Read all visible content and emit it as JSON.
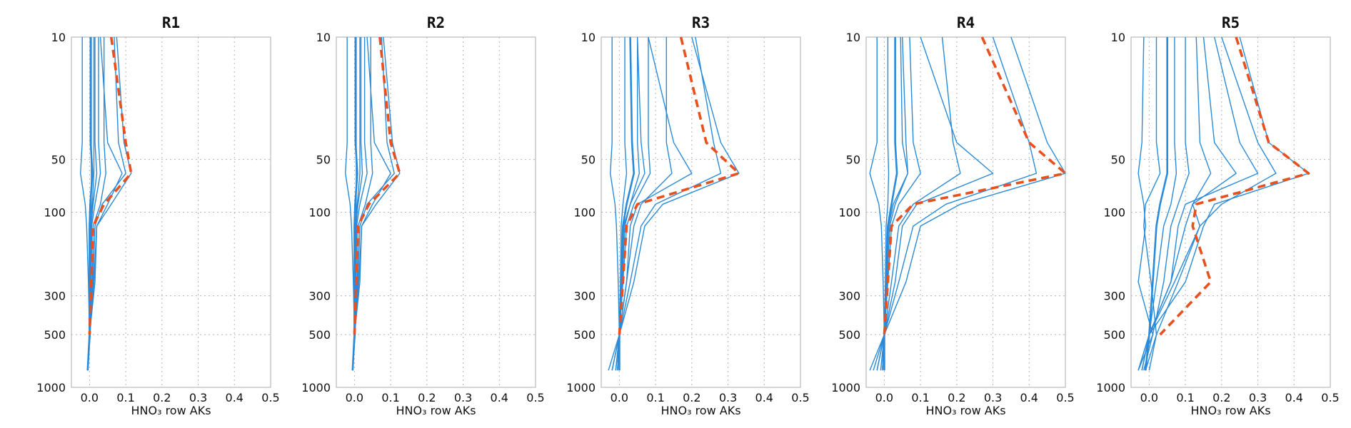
{
  "figure": {
    "xlabel": "HNO₃ row AKs"
  },
  "colors": {
    "ak_lines": "#2a8ad8",
    "highlight": "#e8501e",
    "grid": "#b5b5b5",
    "frame": "#b9b9b9"
  },
  "chart_data": [
    {
      "type": "line",
      "title": "R1",
      "xlabel": "HNO₃ row AKs",
      "ylabel": "",
      "xlim": [
        -0.05,
        0.5
      ],
      "xticks": [
        "0.0",
        "0.1",
        "0.2",
        "0.3",
        "0.4",
        "0.5"
      ],
      "y_axis": {
        "scale": "log",
        "inverted": true,
        "range": [
          1000,
          10
        ],
        "tick_labels": [
          "10",
          "50",
          "100",
          "300",
          "500",
          "1000"
        ]
      },
      "grid": true,
      "highlight_series": 10,
      "y_levels": [
        10,
        40,
        60,
        90,
        120,
        250,
        500,
        800
      ],
      "series": [
        {
          "values": [
            0.005,
            0.005,
            0.005,
            0.005,
            0.005,
            0.005,
            0.002,
            -0.005
          ]
        },
        {
          "values": [
            -0.02,
            -0.02,
            -0.025,
            -0.012,
            -0.008,
            -0.003,
            0.0,
            -0.005
          ]
        },
        {
          "values": [
            0.003,
            0.003,
            0.008,
            0.002,
            0.0,
            0.0,
            0.0,
            -0.005
          ]
        },
        {
          "values": [
            0.012,
            0.012,
            0.012,
            0.008,
            0.003,
            0.002,
            0.0,
            -0.005
          ]
        },
        {
          "values": [
            0.015,
            0.015,
            0.02,
            0.01,
            0.004,
            0.003,
            0.0,
            -0.005
          ]
        },
        {
          "values": [
            0.025,
            0.025,
            0.03,
            0.015,
            0.006,
            0.005,
            0.0,
            -0.005
          ]
        },
        {
          "values": [
            0.04,
            0.04,
            0.045,
            0.03,
            0.01,
            0.008,
            0.0,
            -0.005
          ]
        },
        {
          "values": [
            0.068,
            0.08,
            0.1,
            0.035,
            0.015,
            0.01,
            0.0,
            -0.005
          ]
        },
        {
          "values": [
            0.075,
            0.095,
            0.115,
            0.06,
            0.02,
            0.012,
            0.0,
            -0.005
          ]
        },
        {
          "values": [
            0.03,
            0.05,
            0.09,
            0.05,
            0.02,
            0.015,
            0.0,
            -0.005
          ]
        },
        {
          "values": [
            0.06,
            0.1,
            0.115,
            0.04,
            0.01,
            0.005,
            0.0,
            null
          ]
        }
      ]
    },
    {
      "type": "line",
      "title": "R2",
      "xlabel": "HNO₃ row AKs",
      "ylabel": "",
      "xlim": [
        -0.05,
        0.5
      ],
      "xticks": [
        "0.0",
        "0.1",
        "0.2",
        "0.3",
        "0.4",
        "0.5"
      ],
      "y_axis": {
        "scale": "log",
        "inverted": true,
        "range": [
          1000,
          10
        ],
        "tick_labels": [
          "10",
          "50",
          "100",
          "300",
          "500",
          "1000"
        ]
      },
      "grid": true,
      "highlight_series": 10,
      "y_levels": [
        10,
        40,
        60,
        90,
        120,
        250,
        500,
        800
      ],
      "series": [
        {
          "values": [
            0.005,
            0.005,
            0.005,
            0.005,
            0.005,
            0.005,
            0.002,
            -0.005
          ]
        },
        {
          "values": [
            -0.02,
            -0.02,
            -0.025,
            -0.012,
            -0.008,
            -0.003,
            0.0,
            -0.005
          ]
        },
        {
          "values": [
            0.003,
            0.003,
            0.008,
            0.002,
            0.0,
            0.0,
            0.0,
            -0.005
          ]
        },
        {
          "values": [
            0.015,
            0.015,
            0.015,
            0.008,
            0.003,
            0.002,
            0.0,
            -0.005
          ]
        },
        {
          "values": [
            0.018,
            0.018,
            0.022,
            0.01,
            0.004,
            0.003,
            0.0,
            -0.005
          ]
        },
        {
          "values": [
            0.028,
            0.028,
            0.035,
            0.015,
            0.006,
            0.005,
            0.0,
            -0.005
          ]
        },
        {
          "values": [
            0.045,
            0.045,
            0.05,
            0.03,
            0.01,
            0.008,
            0.0,
            -0.005
          ]
        },
        {
          "values": [
            0.075,
            0.09,
            0.11,
            0.035,
            0.015,
            0.01,
            0.0,
            -0.005
          ]
        },
        {
          "values": [
            0.08,
            0.105,
            0.125,
            0.06,
            0.02,
            0.012,
            0.0,
            -0.005
          ]
        },
        {
          "values": [
            0.035,
            0.055,
            0.1,
            0.05,
            0.02,
            0.015,
            0.0,
            -0.005
          ]
        },
        {
          "values": [
            0.07,
            0.1,
            0.125,
            0.04,
            0.01,
            0.005,
            0.0,
            null
          ]
        }
      ]
    },
    {
      "type": "line",
      "title": "R3",
      "xlabel": "HNO₃ row AKs",
      "ylabel": "",
      "xlim": [
        -0.05,
        0.5
      ],
      "xticks": [
        "0.0",
        "0.1",
        "0.2",
        "0.3",
        "0.4",
        "0.5"
      ],
      "y_axis": {
        "scale": "log",
        "inverted": true,
        "range": [
          1000,
          10
        ],
        "tick_labels": [
          "10",
          "50",
          "100",
          "300",
          "500",
          "1000"
        ]
      },
      "grid": true,
      "highlight_series": 10,
      "y_levels": [
        10,
        40,
        60,
        90,
        120,
        250,
        500,
        800
      ],
      "series": [
        {
          "values": [
            -0.02,
            -0.02,
            -0.025,
            -0.012,
            -0.008,
            -0.003,
            0.0,
            -0.005
          ]
        },
        {
          "values": [
            0.015,
            0.015,
            0.02,
            0.01,
            0.005,
            0.003,
            0.0,
            -0.005
          ]
        },
        {
          "values": [
            0.03,
            0.035,
            0.04,
            0.02,
            0.01,
            0.005,
            0.0,
            0.0
          ]
        },
        {
          "values": [
            0.05,
            0.05,
            0.055,
            0.03,
            0.012,
            0.006,
            0.0,
            0.0
          ]
        },
        {
          "values": [
            0.08,
            0.08,
            0.085,
            0.04,
            0.02,
            0.01,
            0.0,
            -0.01
          ]
        },
        {
          "values": [
            0.13,
            0.13,
            0.145,
            0.06,
            0.04,
            0.02,
            0.0,
            -0.02
          ]
        },
        {
          "values": [
            0.2,
            0.28,
            0.33,
            0.12,
            0.07,
            0.04,
            0.0,
            -0.03
          ]
        },
        {
          "values": [
            0.21,
            0.26,
            0.28,
            0.1,
            0.06,
            0.03,
            0.0,
            -0.02
          ]
        },
        {
          "values": [
            0.05,
            0.06,
            0.07,
            0.03,
            0.015,
            0.008,
            0.0,
            -0.005
          ]
        },
        {
          "values": [
            0.08,
            0.15,
            0.2,
            0.05,
            0.03,
            0.02,
            0.0,
            -0.01
          ]
        },
        {
          "values": [
            0.17,
            0.24,
            0.33,
            0.05,
            0.02,
            0.01,
            0.0,
            null
          ]
        }
      ]
    },
    {
      "type": "line",
      "title": "R4",
      "xlabel": "HNO₃ row AKs",
      "ylabel": "",
      "xlim": [
        -0.05,
        0.5
      ],
      "xticks": [
        "0.0",
        "0.1",
        "0.2",
        "0.3",
        "0.4",
        "0.5"
      ],
      "y_axis": {
        "scale": "log",
        "inverted": true,
        "range": [
          1000,
          10
        ],
        "tick_labels": [
          "10",
          "50",
          "100",
          "300",
          "500",
          "1000"
        ]
      },
      "grid": true,
      "highlight_series": 10,
      "y_levels": [
        10,
        40,
        60,
        90,
        120,
        250,
        500,
        800
      ],
      "series": [
        {
          "values": [
            -0.02,
            -0.02,
            -0.04,
            -0.015,
            -0.008,
            -0.003,
            0.0,
            -0.005
          ]
        },
        {
          "values": [
            0.01,
            0.01,
            0.012,
            0.01,
            0.005,
            0.003,
            0.0,
            -0.005
          ]
        },
        {
          "values": [
            0.03,
            0.03,
            0.035,
            0.02,
            0.01,
            0.005,
            0.0,
            0.0
          ]
        },
        {
          "values": [
            0.045,
            0.05,
            0.065,
            0.025,
            0.012,
            0.006,
            0.0,
            0.0
          ]
        },
        {
          "values": [
            0.07,
            0.08,
            0.1,
            0.04,
            0.02,
            0.01,
            0.0,
            -0.01
          ]
        },
        {
          "values": [
            0.16,
            0.19,
            0.21,
            0.08,
            0.04,
            0.02,
            0.0,
            -0.02
          ]
        },
        {
          "values": [
            0.35,
            0.45,
            0.5,
            0.21,
            0.1,
            0.06,
            0.0,
            -0.04
          ]
        },
        {
          "values": [
            0.3,
            0.4,
            0.42,
            0.17,
            0.08,
            0.04,
            0.0,
            -0.03
          ]
        },
        {
          "values": [
            0.05,
            0.06,
            0.065,
            0.03,
            0.015,
            0.008,
            0.0,
            -0.005
          ]
        },
        {
          "values": [
            0.1,
            0.2,
            0.3,
            0.09,
            0.05,
            0.03,
            0.0,
            -0.02
          ]
        },
        {
          "values": [
            0.27,
            0.4,
            0.5,
            0.08,
            0.02,
            0.01,
            0.0,
            null
          ]
        }
      ]
    },
    {
      "type": "line",
      "title": "R5",
      "xlabel": "HNO₃ row AKs",
      "ylabel": "",
      "xlim": [
        -0.05,
        0.5
      ],
      "xticks": [
        "0.0",
        "0.1",
        "0.2",
        "0.3",
        "0.4",
        "0.5"
      ],
      "y_axis": {
        "scale": "log",
        "inverted": true,
        "range": [
          1000,
          10
        ],
        "tick_labels": [
          "10",
          "50",
          "100",
          "300",
          "500",
          "1000"
        ]
      },
      "grid": true,
      "highlight_series": 10,
      "y_levels": [
        10,
        40,
        60,
        90,
        120,
        250,
        500,
        800
      ],
      "series": [
        {
          "values": [
            -0.015,
            -0.02,
            -0.03,
            -0.015,
            -0.01,
            -0.03,
            0.01,
            -0.03
          ]
        },
        {
          "values": [
            0.02,
            0.02,
            0.03,
            -0.01,
            -0.015,
            0.005,
            0.02,
            0.0
          ]
        },
        {
          "values": [
            0.05,
            0.05,
            0.05,
            0.03,
            0.02,
            0.01,
            0.0,
            -0.01
          ]
        },
        {
          "values": [
            0.07,
            0.07,
            0.075,
            0.06,
            0.04,
            0.02,
            0.0,
            -0.01
          ]
        },
        {
          "values": [
            0.1,
            0.1,
            0.11,
            0.08,
            0.06,
            0.04,
            0.01,
            -0.015
          ]
        },
        {
          "values": [
            0.13,
            0.14,
            0.17,
            0.12,
            0.1,
            0.06,
            0.0,
            -0.02
          ]
        },
        {
          "values": [
            0.25,
            0.33,
            0.44,
            0.18,
            0.15,
            0.1,
            0.0,
            -0.03
          ]
        },
        {
          "values": [
            0.2,
            0.3,
            0.35,
            0.2,
            0.14,
            0.08,
            0.02,
            -0.01
          ]
        },
        {
          "values": [
            0.15,
            0.18,
            0.24,
            0.12,
            0.14,
            0.07,
            0.0,
            -0.02
          ]
        },
        {
          "values": [
            0.18,
            0.25,
            0.3,
            0.1,
            0.08,
            0.06,
            0.0,
            -0.03
          ]
        },
        {
          "values": [
            0.24,
            0.33,
            0.44,
            0.13,
            0.12,
            0.17,
            0.03,
            null
          ]
        }
      ]
    }
  ]
}
